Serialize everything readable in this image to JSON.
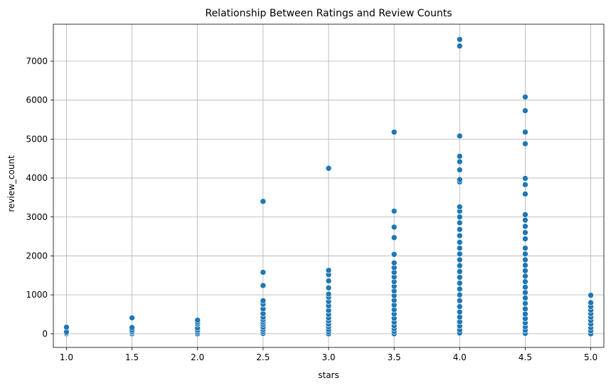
{
  "chart_data": {
    "type": "scatter",
    "title": "Relationship Between Ratings and Review Counts",
    "xlabel": "stars",
    "ylabel": "review_count",
    "xlim": [
      0.9,
      5.1
    ],
    "ylim": [
      -350,
      7950
    ],
    "xticks": [
      1.0,
      1.5,
      2.0,
      2.5,
      3.0,
      3.5,
      4.0,
      4.5,
      5.0
    ],
    "xtick_labels": [
      "1.0",
      "1.5",
      "2.0",
      "2.5",
      "3.0",
      "3.5",
      "4.0",
      "4.5",
      "5.0"
    ],
    "yticks": [
      0,
      1000,
      2000,
      3000,
      4000,
      5000,
      6000,
      7000
    ],
    "ytick_labels": [
      "0",
      "1000",
      "2000",
      "3000",
      "4000",
      "5000",
      "6000",
      "7000"
    ],
    "grid": true,
    "marker_color": "#1f77b4",
    "marker_edge_color": "#ffffff",
    "points": [
      {
        "x": 1.0,
        "y": 0
      },
      {
        "x": 1.0,
        "y": 20
      },
      {
        "x": 1.0,
        "y": 50
      },
      {
        "x": 1.0,
        "y": 170
      },
      {
        "x": 1.5,
        "y": 0
      },
      {
        "x": 1.5,
        "y": 30
      },
      {
        "x": 1.5,
        "y": 60
      },
      {
        "x": 1.5,
        "y": 100
      },
      {
        "x": 1.5,
        "y": 160
      },
      {
        "x": 1.5,
        "y": 410
      },
      {
        "x": 2.0,
        "y": 0
      },
      {
        "x": 2.0,
        "y": 40
      },
      {
        "x": 2.0,
        "y": 90
      },
      {
        "x": 2.0,
        "y": 150
      },
      {
        "x": 2.0,
        "y": 250
      },
      {
        "x": 2.0,
        "y": 300
      },
      {
        "x": 2.0,
        "y": 350
      },
      {
        "x": 2.5,
        "y": 10
      },
      {
        "x": 2.5,
        "y": 60
      },
      {
        "x": 2.5,
        "y": 110
      },
      {
        "x": 2.5,
        "y": 170
      },
      {
        "x": 2.5,
        "y": 240
      },
      {
        "x": 2.5,
        "y": 300
      },
      {
        "x": 2.5,
        "y": 360
      },
      {
        "x": 2.5,
        "y": 430
      },
      {
        "x": 2.5,
        "y": 520
      },
      {
        "x": 2.5,
        "y": 640
      },
      {
        "x": 2.5,
        "y": 760
      },
      {
        "x": 2.5,
        "y": 850
      },
      {
        "x": 2.5,
        "y": 1240
      },
      {
        "x": 2.5,
        "y": 1580
      },
      {
        "x": 2.5,
        "y": 3400
      },
      {
        "x": 3.0,
        "y": 0
      },
      {
        "x": 3.0,
        "y": 50
      },
      {
        "x": 3.0,
        "y": 110
      },
      {
        "x": 3.0,
        "y": 180
      },
      {
        "x": 3.0,
        "y": 250
      },
      {
        "x": 3.0,
        "y": 330
      },
      {
        "x": 3.0,
        "y": 410
      },
      {
        "x": 3.0,
        "y": 500
      },
      {
        "x": 3.0,
        "y": 600
      },
      {
        "x": 3.0,
        "y": 720
      },
      {
        "x": 3.0,
        "y": 830
      },
      {
        "x": 3.0,
        "y": 940
      },
      {
        "x": 3.0,
        "y": 1020
      },
      {
        "x": 3.0,
        "y": 1180
      },
      {
        "x": 3.0,
        "y": 1360
      },
      {
        "x": 3.0,
        "y": 1520
      },
      {
        "x": 3.0,
        "y": 1630
      },
      {
        "x": 3.0,
        "y": 4250
      },
      {
        "x": 3.5,
        "y": 0
      },
      {
        "x": 3.5,
        "y": 60
      },
      {
        "x": 3.5,
        "y": 130
      },
      {
        "x": 3.5,
        "y": 210
      },
      {
        "x": 3.5,
        "y": 300
      },
      {
        "x": 3.5,
        "y": 400
      },
      {
        "x": 3.5,
        "y": 510
      },
      {
        "x": 3.5,
        "y": 620
      },
      {
        "x": 3.5,
        "y": 740
      },
      {
        "x": 3.5,
        "y": 860
      },
      {
        "x": 3.5,
        "y": 980
      },
      {
        "x": 3.5,
        "y": 1100
      },
      {
        "x": 3.5,
        "y": 1220
      },
      {
        "x": 3.5,
        "y": 1340
      },
      {
        "x": 3.5,
        "y": 1460
      },
      {
        "x": 3.5,
        "y": 1580
      },
      {
        "x": 3.5,
        "y": 1700
      },
      {
        "x": 3.5,
        "y": 1820
      },
      {
        "x": 3.5,
        "y": 2040
      },
      {
        "x": 3.5,
        "y": 2470
      },
      {
        "x": 3.5,
        "y": 2740
      },
      {
        "x": 3.5,
        "y": 3150
      },
      {
        "x": 3.5,
        "y": 5180
      },
      {
        "x": 4.0,
        "y": 20
      },
      {
        "x": 4.0,
        "y": 100
      },
      {
        "x": 4.0,
        "y": 200
      },
      {
        "x": 4.0,
        "y": 310
      },
      {
        "x": 4.0,
        "y": 430
      },
      {
        "x": 4.0,
        "y": 560
      },
      {
        "x": 4.0,
        "y": 700
      },
      {
        "x": 4.0,
        "y": 850
      },
      {
        "x": 4.0,
        "y": 1000
      },
      {
        "x": 4.0,
        "y": 1150
      },
      {
        "x": 4.0,
        "y": 1300
      },
      {
        "x": 4.0,
        "y": 1450
      },
      {
        "x": 4.0,
        "y": 1600
      },
      {
        "x": 4.0,
        "y": 1750
      },
      {
        "x": 4.0,
        "y": 1900
      },
      {
        "x": 4.0,
        "y": 2050
      },
      {
        "x": 4.0,
        "y": 2200
      },
      {
        "x": 4.0,
        "y": 2350
      },
      {
        "x": 4.0,
        "y": 2520
      },
      {
        "x": 4.0,
        "y": 2680
      },
      {
        "x": 4.0,
        "y": 2850
      },
      {
        "x": 4.0,
        "y": 3000
      },
      {
        "x": 4.0,
        "y": 3150
      },
      {
        "x": 4.0,
        "y": 3260
      },
      {
        "x": 4.0,
        "y": 3900
      },
      {
        "x": 4.0,
        "y": 3960
      },
      {
        "x": 4.0,
        "y": 4210
      },
      {
        "x": 4.0,
        "y": 4420
      },
      {
        "x": 4.0,
        "y": 4560
      },
      {
        "x": 4.0,
        "y": 5080
      },
      {
        "x": 4.0,
        "y": 7390
      },
      {
        "x": 4.0,
        "y": 7560
      },
      {
        "x": 4.5,
        "y": 10
      },
      {
        "x": 4.5,
        "y": 90
      },
      {
        "x": 4.5,
        "y": 180
      },
      {
        "x": 4.5,
        "y": 280
      },
      {
        "x": 4.5,
        "y": 390
      },
      {
        "x": 4.5,
        "y": 510
      },
      {
        "x": 4.5,
        "y": 640
      },
      {
        "x": 4.5,
        "y": 780
      },
      {
        "x": 4.5,
        "y": 920
      },
      {
        "x": 4.5,
        "y": 1060
      },
      {
        "x": 4.5,
        "y": 1200
      },
      {
        "x": 4.5,
        "y": 1340
      },
      {
        "x": 4.5,
        "y": 1480
      },
      {
        "x": 4.5,
        "y": 1620
      },
      {
        "x": 4.5,
        "y": 1760
      },
      {
        "x": 4.5,
        "y": 1900
      },
      {
        "x": 4.5,
        "y": 2050
      },
      {
        "x": 4.5,
        "y": 2200
      },
      {
        "x": 4.5,
        "y": 2440
      },
      {
        "x": 4.5,
        "y": 2600
      },
      {
        "x": 4.5,
        "y": 2760
      },
      {
        "x": 4.5,
        "y": 2920
      },
      {
        "x": 4.5,
        "y": 3060
      },
      {
        "x": 4.5,
        "y": 3590
      },
      {
        "x": 4.5,
        "y": 3830
      },
      {
        "x": 4.5,
        "y": 3990
      },
      {
        "x": 4.5,
        "y": 4880
      },
      {
        "x": 4.5,
        "y": 5180
      },
      {
        "x": 4.5,
        "y": 5730
      },
      {
        "x": 4.5,
        "y": 6080
      },
      {
        "x": 5.0,
        "y": 0
      },
      {
        "x": 5.0,
        "y": 80
      },
      {
        "x": 5.0,
        "y": 160
      },
      {
        "x": 5.0,
        "y": 250
      },
      {
        "x": 5.0,
        "y": 340
      },
      {
        "x": 5.0,
        "y": 430
      },
      {
        "x": 5.0,
        "y": 520
      },
      {
        "x": 5.0,
        "y": 610
      },
      {
        "x": 5.0,
        "y": 700
      },
      {
        "x": 5.0,
        "y": 800
      },
      {
        "x": 5.0,
        "y": 990
      }
    ]
  }
}
